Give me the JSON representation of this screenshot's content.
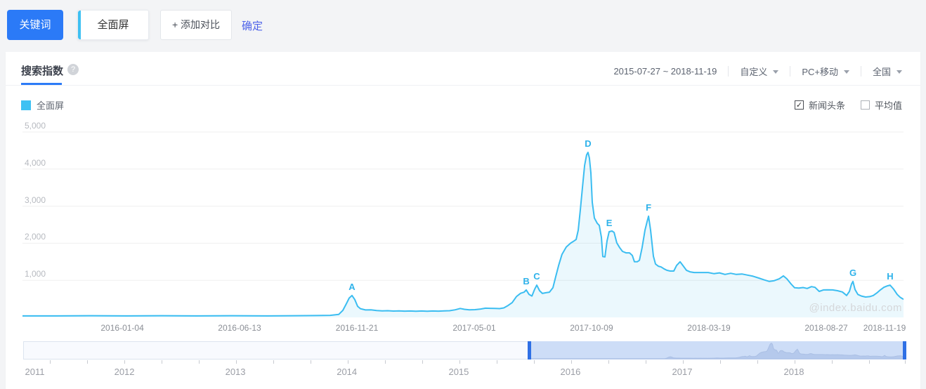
{
  "topbar": {
    "keyword_button": "关键词",
    "keyword_value": "全面屏",
    "add_compare": "+ 添加对比",
    "confirm": "确定"
  },
  "panel": {
    "tab_search_index": "搜索指数",
    "help_glyph": "?",
    "date_range": "2015-07-27 ~ 2018-11-19",
    "range_mode": "自定义",
    "device": "PC+移动",
    "region": "全国",
    "legend_label": "全面屏",
    "legend_color": "#3ec1f3",
    "toggles": [
      {
        "label": "新闻头条",
        "checked": true
      },
      {
        "label": "平均值",
        "checked": false
      }
    ],
    "watermark": "@index.baidu.com"
  },
  "chart_data": {
    "type": "area",
    "series_name": "全面屏",
    "line_color": "#3bbdf1",
    "fill_color": "rgba(62,189,240,0.10)",
    "ylim": [
      0,
      5000
    ],
    "grid": true,
    "y_ticks": [
      {
        "value": 1000,
        "label": "1,000"
      },
      {
        "value": 2000,
        "label": "2,000"
      },
      {
        "value": 3000,
        "label": "3,000"
      },
      {
        "value": 4000,
        "label": "4,000"
      },
      {
        "value": 5000,
        "label": "5,000"
      }
    ],
    "x_ticks": [
      {
        "label": "2016-01-04",
        "f": 0.1133
      },
      {
        "label": "2016-06-13",
        "f": 0.2464
      },
      {
        "label": "2016-11-21",
        "f": 0.3796
      },
      {
        "label": "2017-05-01",
        "f": 0.5128
      },
      {
        "label": "2017-10-09",
        "f": 0.6459
      },
      {
        "label": "2018-03-19",
        "f": 0.7791
      },
      {
        "label": "2018-08-27",
        "f": 0.9123
      },
      {
        "label": "2018-11-19",
        "f": 0.9785
      }
    ],
    "annotations": [
      {
        "label": "A",
        "f": 0.374,
        "value": 590
      },
      {
        "label": "B",
        "f": 0.5718,
        "value": 740
      },
      {
        "label": "C",
        "f": 0.5837,
        "value": 870
      },
      {
        "label": "D",
        "f": 0.6419,
        "value": 4450
      },
      {
        "label": "E",
        "f": 0.6659,
        "value": 2310
      },
      {
        "label": "F",
        "f": 0.7106,
        "value": 2730
      },
      {
        "label": "G",
        "f": 0.9426,
        "value": 970
      },
      {
        "label": "H",
        "f": 0.9848,
        "value": 870
      }
    ],
    "points": [
      [
        0.0,
        40
      ],
      [
        0.0383,
        40
      ],
      [
        0.0781,
        45
      ],
      [
        0.118,
        40
      ],
      [
        0.1579,
        45
      ],
      [
        0.1978,
        40
      ],
      [
        0.2376,
        45
      ],
      [
        0.2775,
        40
      ],
      [
        0.3094,
        45
      ],
      [
        0.3333,
        50
      ],
      [
        0.3493,
        55
      ],
      [
        0.3589,
        80
      ],
      [
        0.3636,
        190
      ],
      [
        0.3676,
        370
      ],
      [
        0.3708,
        520
      ],
      [
        0.374,
        590
      ],
      [
        0.3772,
        480
      ],
      [
        0.3804,
        300
      ],
      [
        0.3836,
        235
      ],
      [
        0.3892,
        200
      ],
      [
        0.3955,
        205
      ],
      [
        0.4019,
        185
      ],
      [
        0.4083,
        175
      ],
      [
        0.4147,
        180
      ],
      [
        0.4211,
        170
      ],
      [
        0.4274,
        175
      ],
      [
        0.4338,
        168
      ],
      [
        0.4402,
        172
      ],
      [
        0.4466,
        165
      ],
      [
        0.453,
        172
      ],
      [
        0.4593,
        166
      ],
      [
        0.4657,
        172
      ],
      [
        0.4721,
        168
      ],
      [
        0.4785,
        175
      ],
      [
        0.4848,
        180
      ],
      [
        0.4912,
        205
      ],
      [
        0.4968,
        240
      ],
      [
        0.5016,
        218
      ],
      [
        0.5072,
        202
      ],
      [
        0.5136,
        208
      ],
      [
        0.52,
        225
      ],
      [
        0.5255,
        248
      ],
      [
        0.5311,
        244
      ],
      [
        0.5367,
        240
      ],
      [
        0.5415,
        236
      ],
      [
        0.5463,
        255
      ],
      [
        0.5511,
        320
      ],
      [
        0.5558,
        400
      ],
      [
        0.5606,
        560
      ],
      [
        0.5654,
        650
      ],
      [
        0.5694,
        680
      ],
      [
        0.5718,
        740
      ],
      [
        0.575,
        620
      ],
      [
        0.5782,
        575
      ],
      [
        0.5813,
        760
      ],
      [
        0.5837,
        870
      ],
      [
        0.5869,
        720
      ],
      [
        0.5901,
        645
      ],
      [
        0.5941,
        665
      ],
      [
        0.5981,
        680
      ],
      [
        0.6021,
        800
      ],
      [
        0.6053,
        1100
      ],
      [
        0.6085,
        1400
      ],
      [
        0.6124,
        1700
      ],
      [
        0.6172,
        1900
      ],
      [
        0.622,
        2000
      ],
      [
        0.626,
        2060
      ],
      [
        0.6284,
        2100
      ],
      [
        0.6308,
        2350
      ],
      [
        0.6332,
        2900
      ],
      [
        0.6356,
        3500
      ],
      [
        0.638,
        4100
      ],
      [
        0.6403,
        4380
      ],
      [
        0.6419,
        4450
      ],
      [
        0.6435,
        4300
      ],
      [
        0.6451,
        3900
      ],
      [
        0.6467,
        3100
      ],
      [
        0.6491,
        2680
      ],
      [
        0.6523,
        2540
      ],
      [
        0.6547,
        2480
      ],
      [
        0.6571,
        2160
      ],
      [
        0.6587,
        1640
      ],
      [
        0.6611,
        1630
      ],
      [
        0.6635,
        2060
      ],
      [
        0.6659,
        2310
      ],
      [
        0.6691,
        2330
      ],
      [
        0.6715,
        2290
      ],
      [
        0.6746,
        2010
      ],
      [
        0.6778,
        1880
      ],
      [
        0.681,
        1780
      ],
      [
        0.685,
        1740
      ],
      [
        0.689,
        1740
      ],
      [
        0.6922,
        1670
      ],
      [
        0.6946,
        1500
      ],
      [
        0.6978,
        1500
      ],
      [
        0.7002,
        1540
      ],
      [
        0.7033,
        1880
      ],
      [
        0.7065,
        2350
      ],
      [
        0.7089,
        2580
      ],
      [
        0.7106,
        2730
      ],
      [
        0.7129,
        2350
      ],
      [
        0.7161,
        1650
      ],
      [
        0.7185,
        1440
      ],
      [
        0.7217,
        1380
      ],
      [
        0.7249,
        1360
      ],
      [
        0.7281,
        1310
      ],
      [
        0.7313,
        1270
      ],
      [
        0.7352,
        1250
      ],
      [
        0.7392,
        1250
      ],
      [
        0.7424,
        1400
      ],
      [
        0.7464,
        1500
      ],
      [
        0.7496,
        1400
      ],
      [
        0.7536,
        1270
      ],
      [
        0.7576,
        1230
      ],
      [
        0.7624,
        1210
      ],
      [
        0.7671,
        1210
      ],
      [
        0.7719,
        1210
      ],
      [
        0.7783,
        1210
      ],
      [
        0.7847,
        1180
      ],
      [
        0.7911,
        1200
      ],
      [
        0.7974,
        1160
      ],
      [
        0.8038,
        1190
      ],
      [
        0.8102,
        1160
      ],
      [
        0.8166,
        1170
      ],
      [
        0.823,
        1140
      ],
      [
        0.8293,
        1110
      ],
      [
        0.8357,
        1060
      ],
      [
        0.8421,
        1010
      ],
      [
        0.8477,
        970
      ],
      [
        0.8533,
        990
      ],
      [
        0.8589,
        1040
      ],
      [
        0.8636,
        1120
      ],
      [
        0.8676,
        1040
      ],
      [
        0.8724,
        900
      ],
      [
        0.8764,
        800
      ],
      [
        0.8812,
        790
      ],
      [
        0.886,
        805
      ],
      [
        0.8907,
        780
      ],
      [
        0.8955,
        830
      ],
      [
        0.8995,
        810
      ],
      [
        0.9043,
        700
      ],
      [
        0.9091,
        740
      ],
      [
        0.9139,
        745
      ],
      [
        0.9195,
        740
      ],
      [
        0.925,
        720
      ],
      [
        0.9306,
        685
      ],
      [
        0.9354,
        590
      ],
      [
        0.9386,
        700
      ],
      [
        0.941,
        900
      ],
      [
        0.9426,
        970
      ],
      [
        0.945,
        750
      ],
      [
        0.9482,
        620
      ],
      [
        0.9522,
        575
      ],
      [
        0.9569,
        550
      ],
      [
        0.9617,
        560
      ],
      [
        0.9657,
        590
      ],
      [
        0.9697,
        660
      ],
      [
        0.9737,
        740
      ],
      [
        0.9777,
        810
      ],
      [
        0.9817,
        850
      ],
      [
        0.9848,
        870
      ],
      [
        0.9888,
        760
      ],
      [
        0.9928,
        620
      ],
      [
        0.996,
        545
      ],
      [
        0.9984,
        510
      ],
      [
        1.0,
        490
      ]
    ]
  },
  "timeline": {
    "years": [
      {
        "label": "2011",
        "f": 0.002,
        "align": "left"
      },
      {
        "label": "2012",
        "f": 0.1146,
        "align": "center"
      },
      {
        "label": "2013",
        "f": 0.2403,
        "align": "center"
      },
      {
        "label": "2014",
        "f": 0.3665,
        "align": "center"
      },
      {
        "label": "2015",
        "f": 0.4932,
        "align": "center"
      },
      {
        "label": "2016",
        "f": 0.6197,
        "align": "center"
      },
      {
        "label": "2017",
        "f": 0.7462,
        "align": "center"
      },
      {
        "label": "2018",
        "f": 0.8727,
        "align": "center"
      }
    ],
    "selected_start_f": 0.5736,
    "selected_end_f": 1.0
  }
}
